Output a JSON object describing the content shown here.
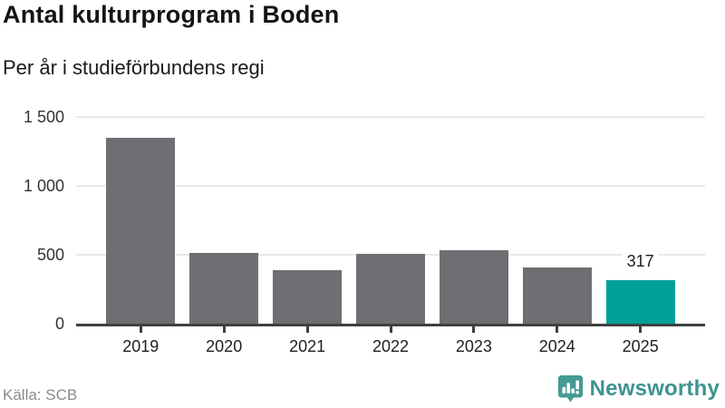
{
  "header": {
    "title": "Antal kulturprogram i Boden",
    "subtitle": "Per år i studieförbundens regi"
  },
  "chart_data": {
    "type": "bar",
    "title": "Antal kulturprogram i Boden",
    "subtitle": "Per år i studieförbundens regi",
    "categories": [
      "2019",
      "2020",
      "2021",
      "2022",
      "2023",
      "2024",
      "2025"
    ],
    "values": [
      1350,
      510,
      390,
      505,
      535,
      410,
      317
    ],
    "xlabel": "",
    "ylabel": "",
    "ylim": [
      0,
      1500
    ],
    "yticks": [
      {
        "value": 0,
        "label": "0"
      },
      {
        "value": 500,
        "label": "500"
      },
      {
        "value": 1000,
        "label": "1 000"
      },
      {
        "value": 1500,
        "label": "1 500"
      }
    ],
    "grid": true,
    "legend": false,
    "bar_color": "#6e6e73",
    "highlight_index": 6,
    "highlight_color": "#00a099",
    "value_labels": [
      {
        "index": 6,
        "label": "317"
      }
    ]
  },
  "footer": {
    "source": "Källa: SCB",
    "logo_text": "Newsworthy",
    "logo_color": "#3d948f",
    "icon_color": "#459a93"
  }
}
